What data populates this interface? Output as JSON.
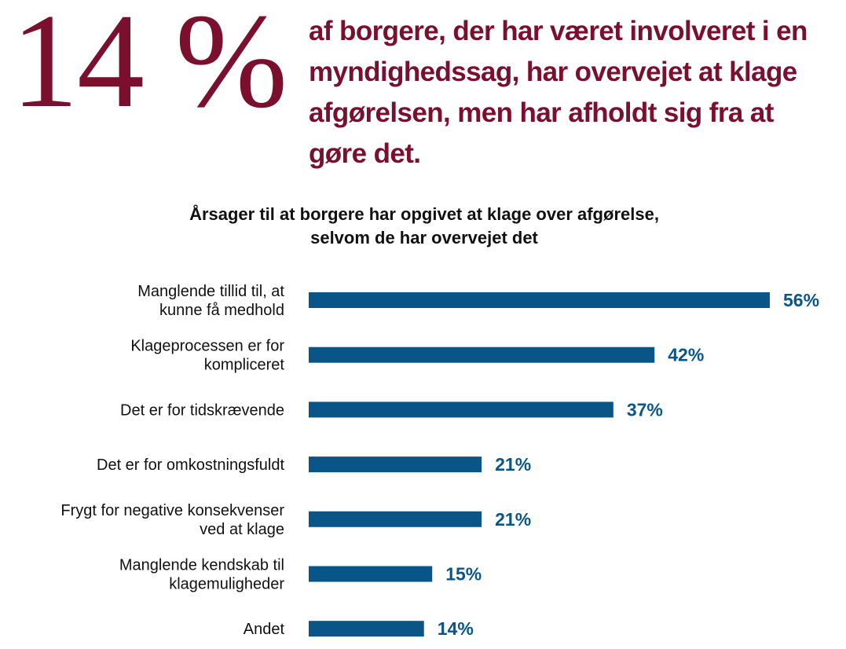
{
  "header": {
    "big_stat": "14 %",
    "headline": "af borgere, der har været involveret i en myndighedssag, har overvejet at klage afgørelsen, men har afholdt sig fra at gøre det."
  },
  "colors": {
    "accent": "#7a0f2e",
    "bar": "#0a5587",
    "value_text": "#0a5587"
  },
  "chart_data": {
    "type": "bar",
    "orientation": "horizontal",
    "title": [
      "Årsager til at borgere har opgivet at klage over afgørelse,",
      "selvom de har overvejet det"
    ],
    "categories": [
      [
        "Manglende tillid til, at",
        "kunne få medhold"
      ],
      [
        "Klageprocessen er for",
        "kompliceret"
      ],
      [
        "Det er for tidskrævende"
      ],
      [
        "Det er for omkostningsfuldt"
      ],
      [
        "Frygt for negative konsekvenser",
        "ved at klage"
      ],
      [
        "Manglende kendskab til",
        "klagemuligheder"
      ],
      [
        "Andet"
      ]
    ],
    "values": [
      56,
      42,
      37,
      21,
      21,
      15,
      14
    ],
    "value_labels": [
      "56%",
      "42%",
      "37%",
      "21%",
      "21%",
      "15%",
      "14%"
    ],
    "unit": "%",
    "xlim": [
      0,
      56
    ],
    "grid": false,
    "legend": "none"
  }
}
